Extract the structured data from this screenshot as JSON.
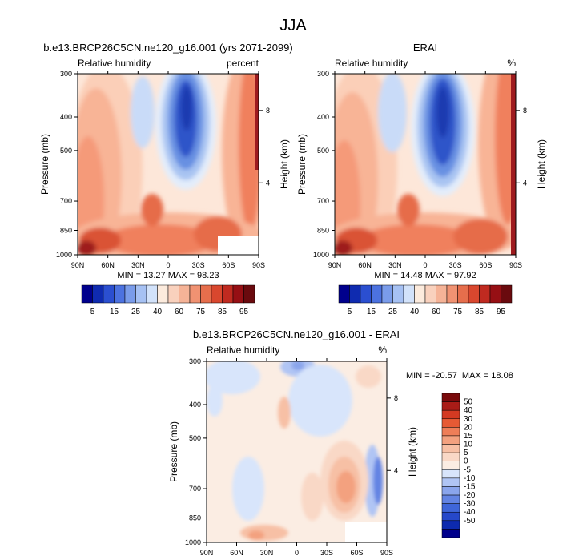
{
  "figure_title": "JJA",
  "colors": {
    "warm": [
      "#FDE7D9",
      "#FBCFB8",
      "#F8B496",
      "#F59A79",
      "#F0805D",
      "#E66C48",
      "#DA5235",
      "#C7362A",
      "#9E1B1F",
      "#6E0F14"
    ],
    "cool": [
      "#E3EDFB",
      "#C9DBF8",
      "#A9C4F2",
      "#86ABEA",
      "#6790E2",
      "#4B73DA",
      "#2F55C9",
      "#1A3AB0",
      "#0B1F82"
    ],
    "colorbar_top": [
      "#00008C",
      "#0F2BB0",
      "#2B4FD0",
      "#4C72E0",
      "#7A9CEA",
      "#A6C1F3",
      "#D2E2FA",
      "#FCEBDD",
      "#F9D1BD",
      "#F5B397",
      "#F09272",
      "#E66E4C",
      "#D9472E",
      "#C02A20",
      "#960F14",
      "#6A0A0E"
    ],
    "colorbar_diff": [
      "#00008C",
      "#0D2AAE",
      "#2648CA",
      "#3F66D9",
      "#6384E3",
      "#8AA5EC",
      "#B0C5F4",
      "#D8E5FB",
      "#FBEDE3",
      "#F9D8C6",
      "#F7C0A5",
      "#F3A17F",
      "#EE7E58",
      "#E65A34",
      "#D43A22",
      "#A91C17",
      "#7A0A0C"
    ]
  },
  "chart_data": [
    {
      "type": "heatmap",
      "name": "model",
      "title": "b.e13.BRCP26C5CN.ne120_g16.001 (yrs 2071-2099)",
      "subtitle_left": "Relative humidity",
      "subtitle_right": "percent",
      "ylabel": "Pressure (mb)",
      "y2label": "Height (km)",
      "x_ticks": [
        "90N",
        "60N",
        "30N",
        "0",
        "30S",
        "60S",
        "90S"
      ],
      "y_ticks": [
        "300",
        "400",
        "500",
        "700",
        "850",
        "1000"
      ],
      "y2_ticks": [
        "8",
        "4"
      ],
      "min_label": "MIN = ",
      "min_value": "13.27",
      "max_label": "MAX = ",
      "max_value": "98.23",
      "colorbar_ticks": [
        "5",
        "15",
        "25",
        "40",
        "60",
        "75",
        "85",
        "95"
      ]
    },
    {
      "type": "heatmap",
      "name": "erai",
      "title": "ERAI",
      "subtitle_left": "Relative humidity",
      "subtitle_right": "%",
      "ylabel": "Pressure (mb)",
      "y2label": "Height (km)",
      "x_ticks": [
        "90N",
        "60N",
        "30N",
        "0",
        "30S",
        "60S",
        "90S"
      ],
      "y_ticks": [
        "300",
        "400",
        "500",
        "700",
        "850",
        "1000"
      ],
      "y2_ticks": [
        "8",
        "4"
      ],
      "min_label": "MIN = ",
      "min_value": "14.48",
      "max_label": "MAX = ",
      "max_value": "97.92",
      "colorbar_ticks": [
        "5",
        "15",
        "25",
        "40",
        "60",
        "75",
        "85",
        "95"
      ]
    },
    {
      "type": "heatmap",
      "name": "difference",
      "title": "b.e13.BRCP26C5CN.ne120_g16.001 - ERAI",
      "subtitle_left": "Relative humidity",
      "subtitle_right": "%",
      "ylabel": "Pressure (mb)",
      "y2label": "Height (km)",
      "x_ticks": [
        "90N",
        "60N",
        "30N",
        "0",
        "30S",
        "60S",
        "90S"
      ],
      "y_ticks": [
        "300",
        "400",
        "500",
        "700",
        "850",
        "1000"
      ],
      "y2_ticks": [
        "8",
        "4"
      ],
      "min_label": "MIN = ",
      "min_value": "-20.57",
      "max_label": "MAX = ",
      "max_value": "18.08",
      "colorbar_ticks": [
        "50",
        "40",
        "30",
        "20",
        "15",
        "10",
        "5",
        "0",
        "-5",
        "-10",
        "-15",
        "-20",
        "-30",
        "-40",
        "-50"
      ]
    }
  ]
}
